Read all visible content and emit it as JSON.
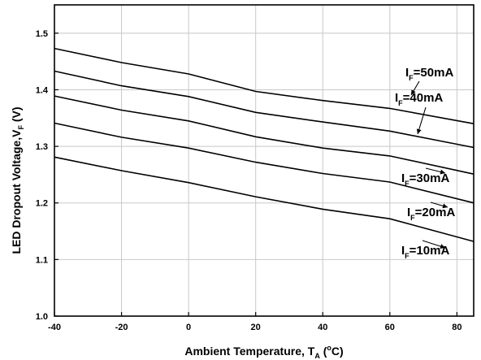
{
  "chart_data": {
    "type": "line",
    "title": "",
    "xlabel": {
      "main": "Ambient Temperature, T",
      "sub": "A",
      "suffix_open": " (",
      "sup": "o",
      "suffix_close": "C)"
    },
    "ylabel": {
      "main": "LED Dropout Voltage,V",
      "sub": "F",
      "suffix": " (V)"
    },
    "xlim": [
      -40,
      85
    ],
    "ylim": [
      1.0,
      1.55
    ],
    "x_ticks": [
      -40,
      -20,
      0,
      20,
      40,
      60,
      80
    ],
    "x_tick_labels": [
      "-40",
      "-20",
      "0",
      "20",
      "40",
      "60",
      "80"
    ],
    "y_ticks": [
      1.0,
      1.1,
      1.2,
      1.3,
      1.4,
      1.5
    ],
    "y_tick_labels": [
      "1.0",
      "1.1",
      "1.2",
      "1.3",
      "1.4",
      "1.5"
    ],
    "grid": true,
    "series": [
      {
        "name": "I_F=50mA",
        "label_main": "I",
        "label_sub": "F",
        "label_rest": "=50mA",
        "x": [
          -40,
          -20,
          0,
          20,
          40,
          60,
          85
        ],
        "y": [
          1.473,
          1.448,
          1.428,
          1.397,
          1.381,
          1.367,
          1.34
        ]
      },
      {
        "name": "I_F=40mA",
        "label_main": "I",
        "label_sub": "F",
        "label_rest": "=40mA",
        "x": [
          -40,
          -20,
          0,
          20,
          40,
          60,
          85
        ],
        "y": [
          1.433,
          1.407,
          1.388,
          1.36,
          1.343,
          1.327,
          1.298
        ]
      },
      {
        "name": "I_F=30mA",
        "label_main": "I",
        "label_sub": "F",
        "label_rest": "=30mA",
        "x": [
          -40,
          -20,
          0,
          20,
          40,
          60,
          85
        ],
        "y": [
          1.389,
          1.364,
          1.345,
          1.317,
          1.297,
          1.283,
          1.251
        ]
      },
      {
        "name": "I_F=20mA",
        "label_main": "I",
        "label_sub": "F",
        "label_rest": "=20mA",
        "x": [
          -40,
          -20,
          0,
          20,
          40,
          60,
          85
        ],
        "y": [
          1.341,
          1.316,
          1.297,
          1.272,
          1.252,
          1.237,
          1.2
        ]
      },
      {
        "name": "I_F=10mA",
        "label_main": "I",
        "label_sub": "F",
        "label_rest": "=10mA",
        "x": [
          -40,
          -20,
          0,
          20,
          40,
          60,
          85
        ],
        "y": [
          1.281,
          1.257,
          1.236,
          1.211,
          1.189,
          1.172,
          1.132
        ]
      }
    ]
  }
}
